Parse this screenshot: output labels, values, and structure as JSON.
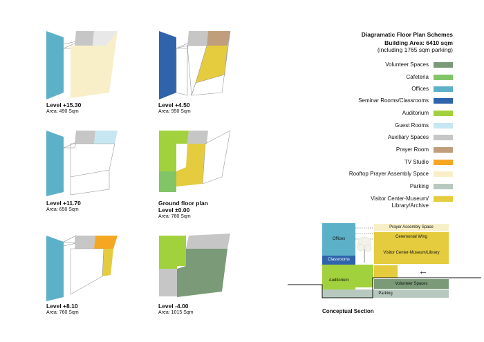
{
  "legend": {
    "title": "Diagramatic Floor Plan Schemes",
    "building_area": "Building Area: 6410 sqm",
    "parking_note": "(including 1765 sqm parking)",
    "items": [
      {
        "label": "Volunteer Spaces",
        "color": "#7a9a78"
      },
      {
        "label": "Cafeteria",
        "color": "#82c567"
      },
      {
        "label": "Offices",
        "color": "#5cb0c8"
      },
      {
        "label": "Seminar Rooms/Classrooms",
        "color": "#2f64ad"
      },
      {
        "label": "Auditorium",
        "color": "#a2d13e"
      },
      {
        "label": "Guest Rooms",
        "color": "#c6e6f1"
      },
      {
        "label": "Auxiliary Spaces",
        "color": "#c6c6c6"
      },
      {
        "label": "Prayer Room",
        "color": "#c09e7b"
      },
      {
        "label": "TV Studio",
        "color": "#f5a623"
      },
      {
        "label": "Rooftop Prayer Assembly Space",
        "color": "#f8efc8"
      },
      {
        "label": "Parking",
        "color": "#b7c9bf"
      },
      {
        "label": "Visitor Center-Museum/ Library/Archive",
        "color": "#e4cc3e"
      }
    ]
  },
  "plans": [
    {
      "level": "Level +15.30",
      "area": "Area: 490 Sqm"
    },
    {
      "level": "Level +4.50",
      "area": "Area: 950 Sqm"
    },
    {
      "level": "Level +11.70",
      "area": "Area: 650 Sqm"
    },
    {
      "level": "Ground floor plan",
      "level2": "Level ±0.00",
      "area": "Area: 780 Sqm"
    },
    {
      "level": "Level +8.10",
      "area": "Area: 760 Sqm"
    },
    {
      "level": "Level -4.00",
      "area": "Area: 1015 Sqm"
    }
  ],
  "section": {
    "title": "Conceptual Section",
    "offices": "Offices",
    "classrooms": "Classrooms",
    "auditorium": "Auditorium",
    "prayer_assembly": "Prayer Assembly Space",
    "ceremonial_wing": "Ceremonial Wing",
    "visitor_center": "Visitor Center-Museum/Library",
    "volunteer": "Volunteer Spaces",
    "parking": "Parking",
    "arrow": "←"
  }
}
